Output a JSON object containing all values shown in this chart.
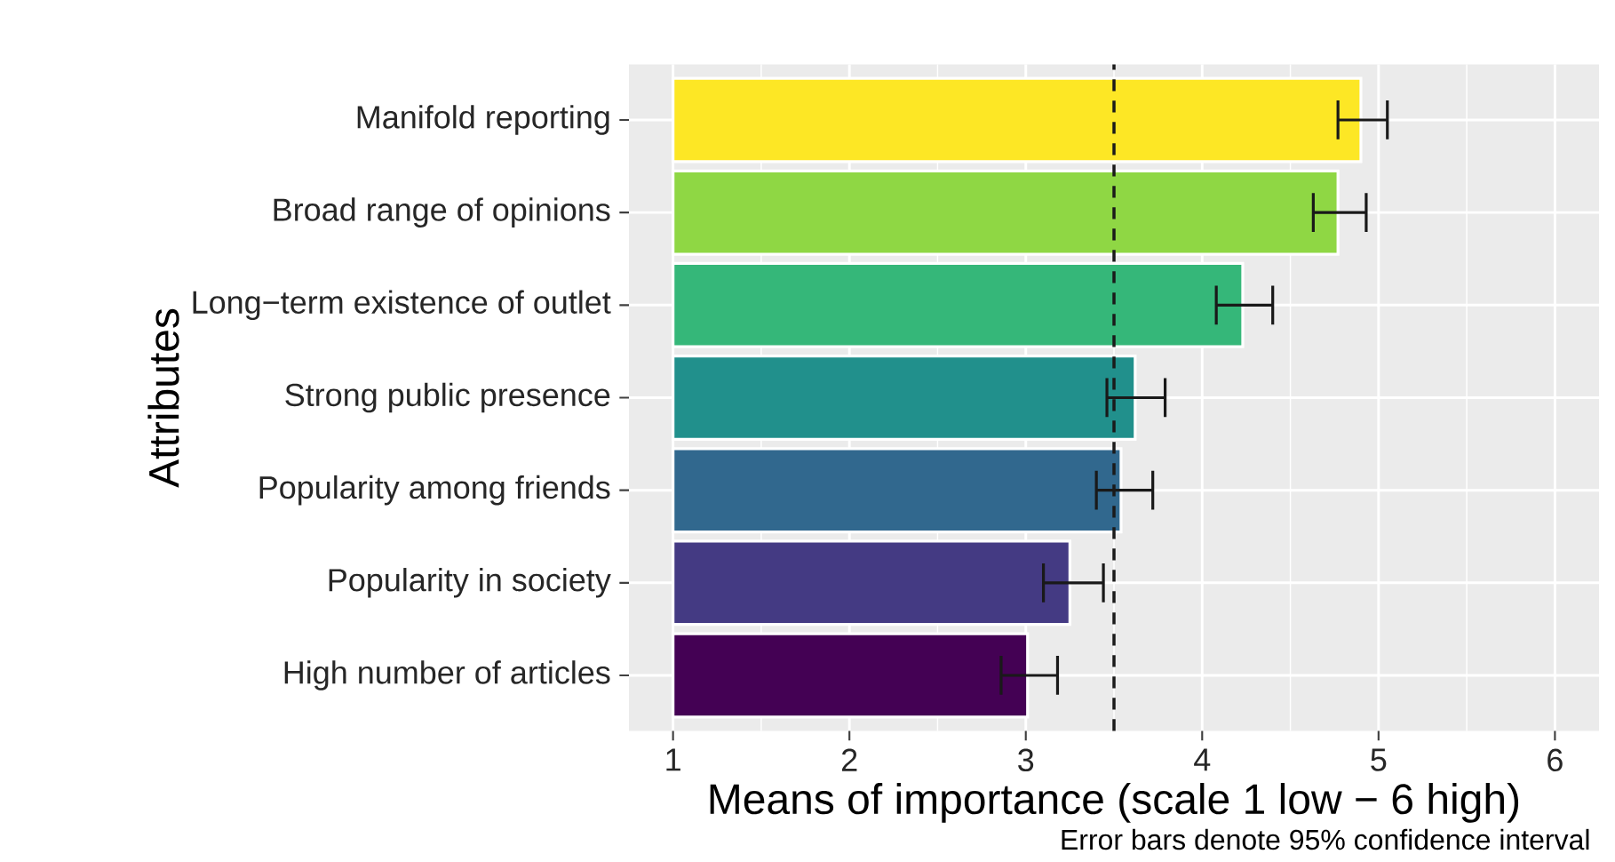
{
  "chart_data": {
    "type": "bar",
    "orientation": "horizontal",
    "xlabel": "Means of importance (scale 1 low − 6 high)",
    "ylabel": "Attributes",
    "categories": [
      "Manifold reporting",
      "Broad range of opinions",
      "Long−term existence of outlet",
      "Strong public presence",
      "Popularity among friends",
      "Popularity in society",
      "High number of articles"
    ],
    "values": [
      3.9,
      3.77,
      3.23,
      2.62,
      2.54,
      2.25,
      2.01
    ],
    "base": [
      1,
      1,
      1,
      1,
      1,
      1,
      1
    ],
    "colors": [
      "#fde725",
      "#8fd744",
      "#35b779",
      "#21908c",
      "#31688e",
      "#443a83",
      "#440154"
    ],
    "errors": [
      [
        4.77,
        5.05
      ],
      [
        4.63,
        4.93
      ],
      [
        4.08,
        4.4
      ],
      [
        3.46,
        3.79
      ],
      [
        3.4,
        3.72
      ],
      [
        3.1,
        3.44
      ],
      [
        2.86,
        3.18
      ]
    ],
    "xlim": [
      0.75,
      6.25
    ],
    "xticks": [
      1,
      2,
      3,
      4,
      5,
      6
    ],
    "grid": true,
    "ref_lines": [
      {
        "axis": "x",
        "value": 3.5,
        "line_style": "dashed",
        "color": "#1a1a1a"
      }
    ],
    "annotations": [
      "Error bars denote 95% confidence interval"
    ]
  }
}
